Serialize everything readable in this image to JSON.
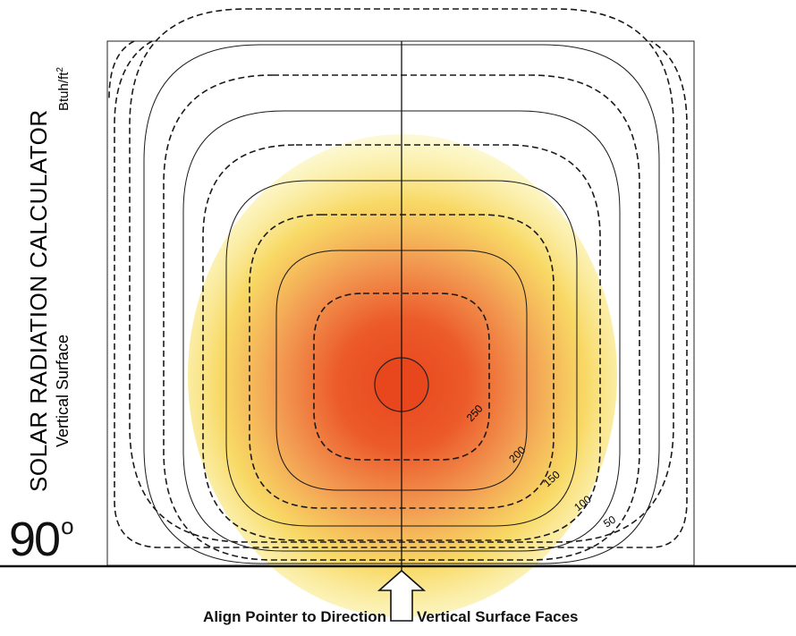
{
  "title": {
    "main": "SOLAR RADIATION CALCULATOR",
    "units": "Btuh/ft",
    "units_exponent": "2",
    "subtitle": "Vertical Surface"
  },
  "angle": {
    "value": "90",
    "unit_symbol": "o"
  },
  "contour_labels": [
    "250",
    "200",
    "150",
    "100",
    "50"
  ],
  "pointer_caption": {
    "left": "Align Pointer to Direction",
    "right": "Vertical Surface Faces"
  },
  "colors": {
    "core": "#e8461c",
    "inner": "#ef7a3a",
    "mid": "#f4a24a",
    "outer": "#f6d23f",
    "outermost": "#f7ec7a",
    "lines": "#1a1a1a"
  }
}
